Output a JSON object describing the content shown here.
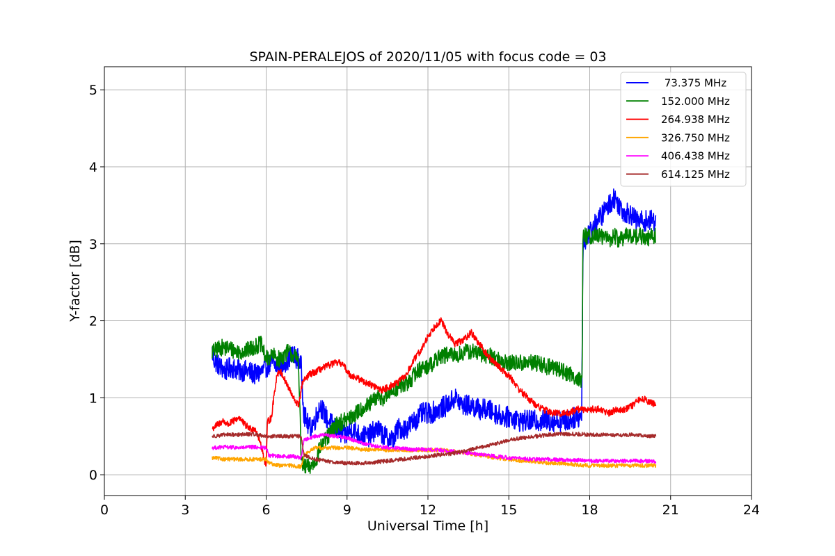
{
  "chart_data": {
    "type": "line",
    "title": "SPAIN-PERALEJOS of 2020/11/05 with focus code = 03",
    "xlabel": "Universal Time [h]",
    "ylabel": "Y-factor [dB]",
    "xlim": [
      0,
      24
    ],
    "ylim": [
      -0.27,
      5.3
    ],
    "xticks": [
      0,
      3,
      6,
      9,
      12,
      15,
      18,
      21,
      24
    ],
    "xtick_labels": [
      "0",
      "3",
      "6",
      "9",
      "12",
      "15",
      "18",
      "21",
      "24"
    ],
    "yticks": [
      0,
      1,
      2,
      3,
      4,
      5
    ],
    "ytick_labels": [
      "0",
      "1",
      "2",
      "3",
      "4",
      "5"
    ],
    "grid": true,
    "legend_position": "top-right",
    "series": [
      {
        "name": " 73.375 MHz",
        "color": "#0000ff",
        "noise": 0.28,
        "x": [
          4.0,
          4.05,
          4.3,
          4.5,
          4.7,
          5.0,
          5.3,
          5.6,
          5.9,
          6.0,
          6.2,
          6.5,
          6.8,
          7.0,
          7.2,
          7.3,
          7.4,
          7.6,
          7.8,
          8.0,
          8.3,
          8.6,
          8.9,
          9.2,
          9.5,
          9.8,
          10.1,
          10.4,
          10.7,
          10.9,
          11.2,
          11.5,
          11.8,
          12.1,
          12.4,
          12.7,
          13.0,
          13.3,
          13.6,
          13.9,
          14.2,
          14.5,
          14.8,
          15.1,
          15.4,
          15.7,
          16.0,
          16.3,
          16.6,
          16.9,
          17.2,
          17.5,
          17.7,
          17.75,
          17.9,
          18.1,
          18.3,
          18.5,
          18.7,
          18.9,
          19.1,
          19.3,
          19.5,
          19.7,
          19.9,
          20.1,
          20.3,
          20.45
        ],
        "y": [
          1.6,
          1.5,
          1.4,
          1.35,
          1.4,
          1.35,
          1.35,
          1.3,
          1.35,
          1.4,
          1.45,
          1.4,
          1.5,
          1.55,
          1.5,
          1.4,
          0.8,
          0.6,
          0.7,
          0.9,
          0.7,
          0.6,
          0.5,
          0.6,
          0.5,
          0.5,
          0.6,
          0.5,
          0.45,
          0.6,
          0.6,
          0.7,
          0.8,
          0.8,
          0.85,
          0.9,
          1.0,
          0.9,
          0.9,
          0.85,
          0.85,
          0.8,
          0.75,
          0.75,
          0.7,
          0.7,
          0.7,
          0.7,
          0.7,
          0.7,
          0.7,
          0.75,
          0.75,
          3.0,
          3.1,
          3.2,
          3.3,
          3.4,
          3.5,
          3.6,
          3.5,
          3.4,
          3.4,
          3.3,
          3.3,
          3.3,
          3.3,
          3.3
        ]
      },
      {
        "name": "152.000 MHz",
        "color": "#008000",
        "noise": 0.22,
        "x": [
          4.0,
          4.05,
          4.3,
          4.6,
          4.9,
          5.2,
          5.5,
          5.8,
          6.0,
          6.2,
          6.5,
          6.8,
          7.0,
          7.2,
          7.3,
          7.4,
          7.6,
          7.8,
          8.0,
          8.3,
          8.6,
          8.9,
          9.2,
          9.5,
          9.8,
          10.1,
          10.4,
          10.7,
          11.0,
          11.3,
          11.6,
          11.9,
          12.2,
          12.5,
          12.8,
          13.1,
          13.4,
          13.7,
          14.0,
          14.3,
          14.6,
          14.9,
          15.2,
          15.5,
          15.8,
          16.1,
          16.4,
          16.7,
          17.0,
          17.3,
          17.6,
          17.72,
          17.75,
          17.9,
          18.1,
          18.3,
          18.5,
          18.7,
          18.9,
          19.1,
          19.3,
          19.5,
          19.7,
          19.9,
          20.1,
          20.3,
          20.45
        ],
        "y": [
          1.6,
          1.6,
          1.65,
          1.65,
          1.6,
          1.6,
          1.65,
          1.7,
          1.5,
          1.55,
          1.5,
          1.6,
          1.55,
          1.5,
          0.2,
          0.1,
          0.1,
          0.15,
          0.35,
          0.5,
          0.65,
          0.7,
          0.75,
          0.85,
          0.9,
          1.0,
          1.0,
          1.1,
          1.15,
          1.2,
          1.35,
          1.4,
          1.45,
          1.55,
          1.55,
          1.55,
          1.6,
          1.6,
          1.55,
          1.55,
          1.5,
          1.45,
          1.45,
          1.45,
          1.45,
          1.45,
          1.4,
          1.4,
          1.35,
          1.3,
          1.25,
          1.2,
          3.1,
          3.1,
          3.1,
          3.1,
          3.1,
          3.05,
          3.1,
          3.05,
          3.1,
          3.1,
          3.1,
          3.1,
          3.05,
          3.1,
          3.1
        ]
      },
      {
        "name": "264.938 MHz",
        "color": "#ff0000",
        "noise": 0.09,
        "x": [
          4.0,
          4.2,
          4.4,
          4.6,
          4.8,
          5.0,
          5.2,
          5.4,
          5.6,
          5.8,
          6.0,
          6.05,
          6.1,
          6.2,
          6.3,
          6.4,
          6.5,
          6.6,
          6.8,
          7.0,
          7.2,
          7.35,
          7.6,
          7.9,
          8.2,
          8.5,
          8.8,
          9.1,
          9.4,
          9.7,
          10.0,
          10.3,
          10.6,
          10.9,
          11.2,
          11.5,
          11.8,
          12.0,
          12.3,
          12.5,
          12.7,
          13.0,
          13.3,
          13.6,
          13.9,
          14.2,
          14.5,
          14.8,
          15.1,
          15.4,
          15.7,
          16.0,
          16.3,
          16.6,
          16.9,
          17.2,
          17.5,
          17.8,
          18.1,
          18.4,
          18.7,
          19.0,
          19.3,
          19.6,
          19.9,
          20.2,
          20.45
        ],
        "y": [
          0.6,
          0.65,
          0.7,
          0.65,
          0.7,
          0.75,
          0.65,
          0.6,
          0.6,
          0.4,
          0.1,
          0.7,
          0.7,
          0.75,
          1.05,
          1.3,
          1.35,
          1.3,
          1.15,
          1.0,
          0.9,
          1.2,
          1.3,
          1.35,
          1.4,
          1.45,
          1.45,
          1.3,
          1.25,
          1.2,
          1.15,
          1.1,
          1.15,
          1.2,
          1.3,
          1.5,
          1.65,
          1.8,
          1.95,
          2.0,
          1.85,
          1.7,
          1.75,
          1.85,
          1.7,
          1.55,
          1.45,
          1.35,
          1.25,
          1.1,
          1.0,
          0.9,
          0.85,
          0.8,
          0.8,
          0.8,
          0.85,
          0.85,
          0.85,
          0.85,
          0.8,
          0.85,
          0.85,
          0.9,
          1.0,
          0.95,
          0.9
        ]
      },
      {
        "name": "326.750 MHz",
        "color": "#ffa500",
        "noise": 0.05,
        "x": [
          4.0,
          4.5,
          5.0,
          5.5,
          6.0,
          6.1,
          6.5,
          7.0,
          7.3,
          7.4,
          7.8,
          8.2,
          8.6,
          9.0,
          9.5,
          10.0,
          10.5,
          11.0,
          11.5,
          12.0,
          12.5,
          13.0,
          13.5,
          14.0,
          14.5,
          15.0,
          15.5,
          16.0,
          16.5,
          17.0,
          17.5,
          18.0,
          18.5,
          19.0,
          19.5,
          20.0,
          20.45
        ],
        "y": [
          0.22,
          0.2,
          0.2,
          0.2,
          0.2,
          0.15,
          0.12,
          0.12,
          0.1,
          0.25,
          0.35,
          0.35,
          0.35,
          0.35,
          0.33,
          0.33,
          0.32,
          0.32,
          0.32,
          0.32,
          0.32,
          0.3,
          0.28,
          0.25,
          0.22,
          0.2,
          0.18,
          0.17,
          0.15,
          0.15,
          0.13,
          0.12,
          0.12,
          0.12,
          0.12,
          0.12,
          0.12
        ]
      },
      {
        "name": "406.438 MHz",
        "color": "#ff00ff",
        "noise": 0.05,
        "x": [
          4.0,
          4.5,
          5.0,
          5.5,
          6.0,
          6.1,
          6.5,
          7.0,
          7.3,
          7.4,
          7.8,
          8.2,
          8.6,
          9.0,
          9.5,
          10.0,
          10.5,
          11.0,
          11.5,
          12.0,
          12.5,
          13.0,
          13.5,
          14.0,
          14.5,
          15.0,
          15.5,
          16.0,
          16.5,
          17.0,
          17.5,
          18.0,
          18.5,
          19.0,
          19.5,
          20.0,
          20.45
        ],
        "y": [
          0.35,
          0.36,
          0.35,
          0.36,
          0.35,
          0.25,
          0.24,
          0.24,
          0.22,
          0.45,
          0.5,
          0.52,
          0.5,
          0.48,
          0.42,
          0.37,
          0.35,
          0.34,
          0.33,
          0.33,
          0.32,
          0.3,
          0.28,
          0.26,
          0.24,
          0.22,
          0.21,
          0.2,
          0.2,
          0.19,
          0.19,
          0.18,
          0.18,
          0.18,
          0.18,
          0.18,
          0.17
        ]
      },
      {
        "name": "614.125 MHz",
        "color": "#a52a2a",
        "noise": 0.05,
        "x": [
          4.0,
          4.5,
          5.0,
          5.5,
          6.0,
          6.1,
          6.5,
          7.0,
          7.3,
          7.4,
          7.8,
          8.2,
          8.6,
          9.0,
          9.5,
          10.0,
          10.5,
          11.0,
          11.5,
          12.0,
          12.5,
          13.0,
          13.5,
          14.0,
          14.5,
          15.0,
          15.5,
          16.0,
          16.5,
          17.0,
          17.5,
          18.0,
          18.5,
          19.0,
          19.5,
          20.0,
          20.45
        ],
        "y": [
          0.5,
          0.52,
          0.52,
          0.53,
          0.5,
          0.5,
          0.5,
          0.5,
          0.5,
          0.25,
          0.2,
          0.18,
          0.16,
          0.15,
          0.15,
          0.16,
          0.18,
          0.2,
          0.22,
          0.24,
          0.26,
          0.28,
          0.32,
          0.36,
          0.4,
          0.45,
          0.48,
          0.5,
          0.52,
          0.53,
          0.53,
          0.52,
          0.52,
          0.51,
          0.52,
          0.51,
          0.5
        ]
      }
    ],
    "annotations": []
  }
}
